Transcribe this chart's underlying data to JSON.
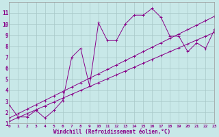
{
  "xlabel": "Windchill (Refroidissement éolien,°C)",
  "background_color": "#c8e8e8",
  "grid_color": "#a8c8c8",
  "line_color": "#880088",
  "x_data": [
    0,
    1,
    2,
    3,
    4,
    5,
    6,
    7,
    8,
    9,
    10,
    11,
    12,
    13,
    14,
    15,
    16,
    17,
    18,
    19,
    20,
    21,
    22,
    23
  ],
  "series1": [
    2.7,
    1.6,
    1.6,
    2.2,
    1.5,
    2.2,
    3.1,
    7.0,
    7.8,
    4.4,
    10.1,
    8.5,
    8.5,
    10.0,
    10.8,
    10.8,
    11.4,
    10.6,
    8.9,
    8.9,
    7.5,
    8.3,
    7.8,
    9.5
  ],
  "series2": [
    1.2,
    1.55,
    1.9,
    2.25,
    2.6,
    2.95,
    3.3,
    3.65,
    4.0,
    4.35,
    4.7,
    5.05,
    5.4,
    5.75,
    6.1,
    6.45,
    6.8,
    7.15,
    7.5,
    7.85,
    8.2,
    8.55,
    8.9,
    9.25
  ],
  "series3": [
    1.5,
    1.9,
    2.3,
    2.7,
    3.1,
    3.5,
    3.9,
    4.3,
    4.7,
    5.1,
    5.5,
    5.9,
    6.3,
    6.7,
    7.1,
    7.5,
    7.9,
    8.3,
    8.7,
    9.1,
    9.5,
    9.9,
    10.3,
    10.7
  ],
  "xlim": [
    0,
    23
  ],
  "ylim": [
    1,
    12
  ],
  "xticks": [
    0,
    1,
    2,
    3,
    4,
    5,
    6,
    7,
    8,
    9,
    10,
    11,
    12,
    13,
    14,
    15,
    16,
    17,
    18,
    19,
    20,
    21,
    22,
    23
  ],
  "yticks": [
    1,
    2,
    3,
    4,
    5,
    6,
    7,
    8,
    9,
    10,
    11
  ]
}
